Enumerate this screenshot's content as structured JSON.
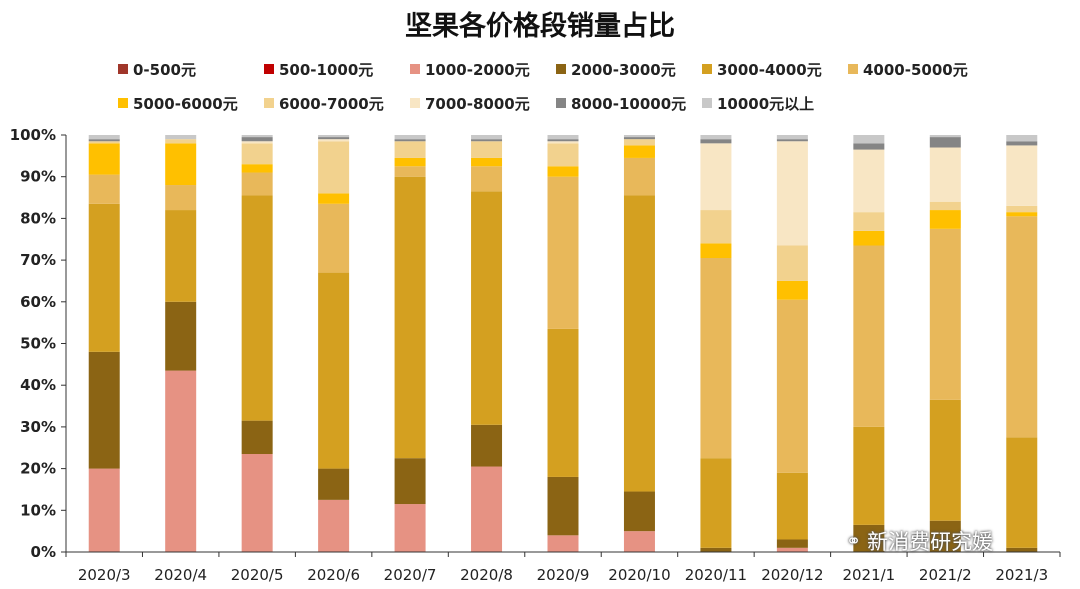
{
  "chart_data": {
    "type": "bar",
    "stacked": true,
    "title": "坚果各价格段销量占比",
    "xlabel": "",
    "ylabel": "",
    "ylim": [
      0,
      100
    ],
    "y_ticks": [
      "0%",
      "10%",
      "20%",
      "30%",
      "40%",
      "50%",
      "60%",
      "70%",
      "80%",
      "90%",
      "100%"
    ],
    "categories": [
      "2020/3",
      "2020/4",
      "2020/5",
      "2020/6",
      "2020/7",
      "2020/8",
      "2020/9",
      "2020/10",
      "2020/11",
      "2020/12",
      "2021/1",
      "2021/2",
      "2021/3"
    ],
    "legend_position": "top",
    "series": [
      {
        "name": "0-500元",
        "color": "#a0362a",
        "values": [
          0,
          0,
          0,
          0,
          0,
          0,
          0,
          0,
          0,
          0,
          0,
          0,
          0
        ]
      },
      {
        "name": "500-1000元",
        "color": "#c00000",
        "values": [
          0,
          0,
          0,
          0,
          0,
          0,
          0,
          0,
          0,
          0,
          0,
          0,
          0
        ]
      },
      {
        "name": "1000-2000元",
        "color": "#e69283",
        "values": [
          20,
          43.5,
          23.5,
          12.5,
          11.5,
          20.5,
          4,
          5,
          0,
          1,
          0,
          0,
          0
        ]
      },
      {
        "name": "2000-3000元",
        "color": "#8b6414",
        "values": [
          28,
          16.5,
          8,
          7.5,
          11,
          10,
          14,
          9.5,
          1,
          2,
          6.5,
          7.5,
          1
        ]
      },
      {
        "name": "3000-4000元",
        "color": "#d4a020",
        "values": [
          35.5,
          22,
          54,
          47,
          67.5,
          56,
          35.5,
          71,
          21.5,
          16,
          23.5,
          29,
          26.5
        ]
      },
      {
        "name": "4000-5000元",
        "color": "#e8b85a",
        "values": [
          7,
          6,
          5.5,
          16.5,
          2.5,
          6,
          36.5,
          9,
          48,
          41.5,
          43.5,
          41,
          53
        ]
      },
      {
        "name": "5000-6000元",
        "color": "#ffc000",
        "values": [
          7.5,
          10,
          2,
          2.5,
          2,
          2,
          2.5,
          3,
          3.5,
          4.5,
          3.5,
          4.5,
          1
        ]
      },
      {
        "name": "6000-7000元",
        "color": "#f2d28e",
        "values": [
          0.5,
          1,
          5,
          12.5,
          4,
          4,
          5.5,
          1.5,
          8,
          8.5,
          4.5,
          2,
          1.5
        ]
      },
      {
        "name": "7000-8000元",
        "color": "#f8e6c4",
        "values": [
          0,
          0,
          0.5,
          0.5,
          0,
          0,
          0.5,
          0,
          16,
          25,
          15,
          13,
          14.5
        ]
      },
      {
        "name": "8000-10000元",
        "color": "#858585",
        "values": [
          0.5,
          0,
          1,
          0.5,
          0.5,
          0.5,
          0.5,
          0.5,
          1,
          0.5,
          1.5,
          2.5,
          1
        ]
      },
      {
        "name": "10000元以上",
        "color": "#c8c8c8",
        "values": [
          1,
          1,
          0.5,
          0.5,
          1,
          1,
          1,
          0.5,
          1,
          1,
          2,
          0.5,
          1.5
        ]
      }
    ]
  },
  "watermark": {
    "text": "新消费研究媛",
    "icon": "wechat-icon"
  }
}
